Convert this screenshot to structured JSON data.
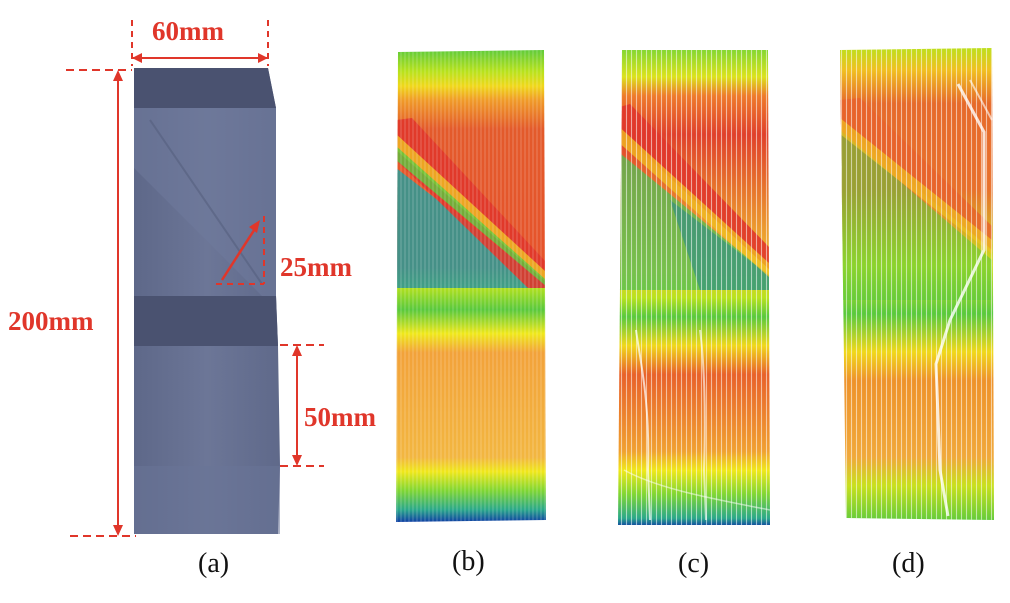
{
  "figure": {
    "dimensions": {
      "width": "60mm",
      "height": "200mm",
      "crack": "25mm",
      "band": "50mm"
    },
    "panels": [
      {
        "id": "a",
        "label": "(a)",
        "kind": "3d-model"
      },
      {
        "id": "b",
        "label": "(b)",
        "kind": "point-cloud",
        "variant": "clean"
      },
      {
        "id": "c",
        "label": "(c)",
        "kind": "point-cloud",
        "variant": "streaked"
      },
      {
        "id": "d",
        "label": "(d)",
        "kind": "point-cloud",
        "variant": "distorted"
      }
    ],
    "colors": {
      "dimension": "#e0362a",
      "model_face": "#6b7696",
      "model_dark_band": "#4a5270",
      "colormap": [
        "#0a2ea8",
        "#2f86c8",
        "#2aa88a",
        "#59c93d",
        "#b9e21c",
        "#f0e81a",
        "#f4a524",
        "#e8612a",
        "#e0362a"
      ]
    }
  }
}
